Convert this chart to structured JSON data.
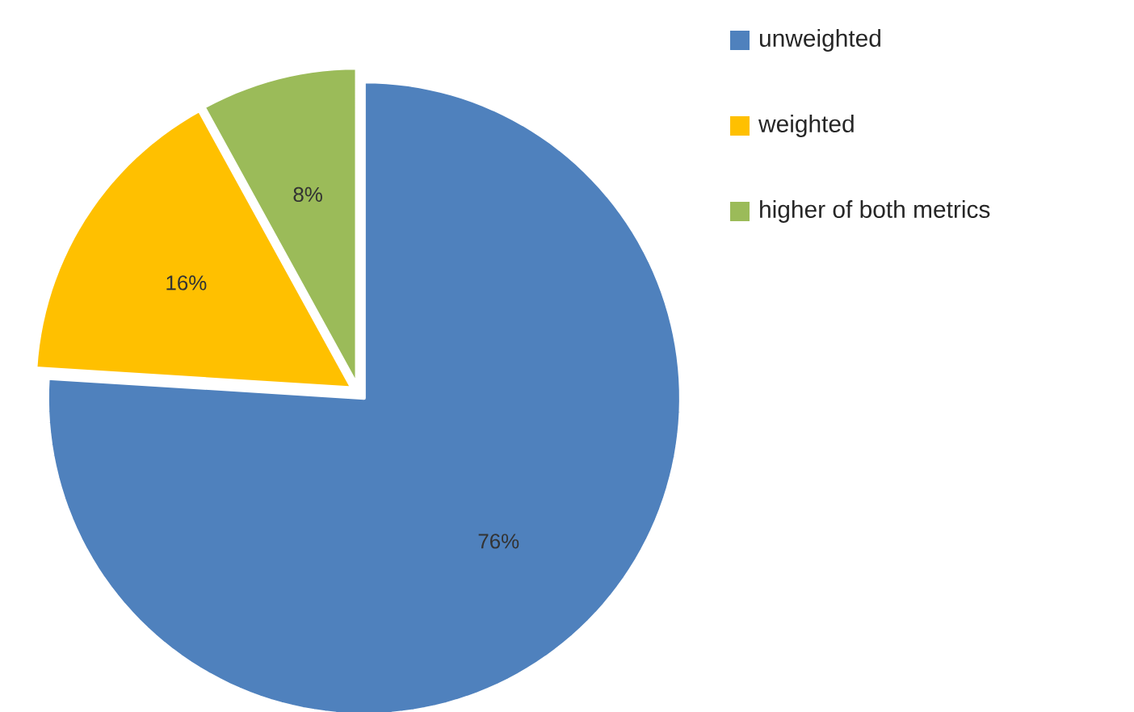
{
  "chart_data": {
    "type": "pie",
    "categories": [
      "unweighted",
      "weighted",
      "higher of both metrics"
    ],
    "values": [
      76,
      16,
      8
    ],
    "colors": [
      "#4f81bd",
      "#ffc000",
      "#9bbb59"
    ],
    "value_labels": [
      "76%",
      "16%",
      "8%"
    ],
    "legend": "top right"
  }
}
